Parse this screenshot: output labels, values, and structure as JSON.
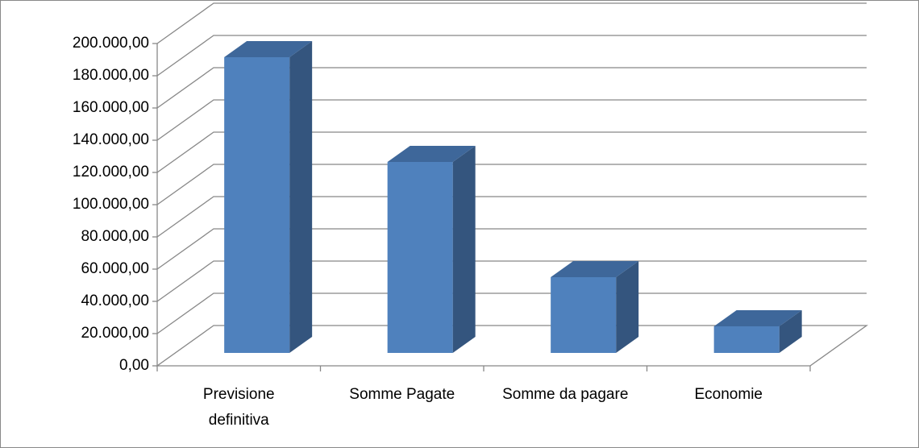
{
  "chart_data": {
    "type": "bar3d",
    "categories": [
      "Previsione definitiva",
      "Somme Pagate",
      "Somme da pagare",
      "Economie"
    ],
    "values": [
      183500,
      118500,
      47000,
      16500
    ],
    "color": "#4f81bd",
    "ylim": [
      0,
      200000
    ],
    "yticks": [
      {
        "value": 0,
        "label": "0,00"
      },
      {
        "value": 20000,
        "label": "20.000,00"
      },
      {
        "value": 40000,
        "label": "40.000,00"
      },
      {
        "value": 60000,
        "label": "60.000,00"
      },
      {
        "value": 80000,
        "label": "80.000,00"
      },
      {
        "value": 100000,
        "label": "100.000,00"
      },
      {
        "value": 120000,
        "label": "120.000,00"
      },
      {
        "value": 140000,
        "label": "140.000,00"
      },
      {
        "value": 160000,
        "label": "160.000,00"
      },
      {
        "value": 180000,
        "label": "180.000,00"
      },
      {
        "value": 200000,
        "label": "200.000,00"
      }
    ],
    "grid": true
  }
}
